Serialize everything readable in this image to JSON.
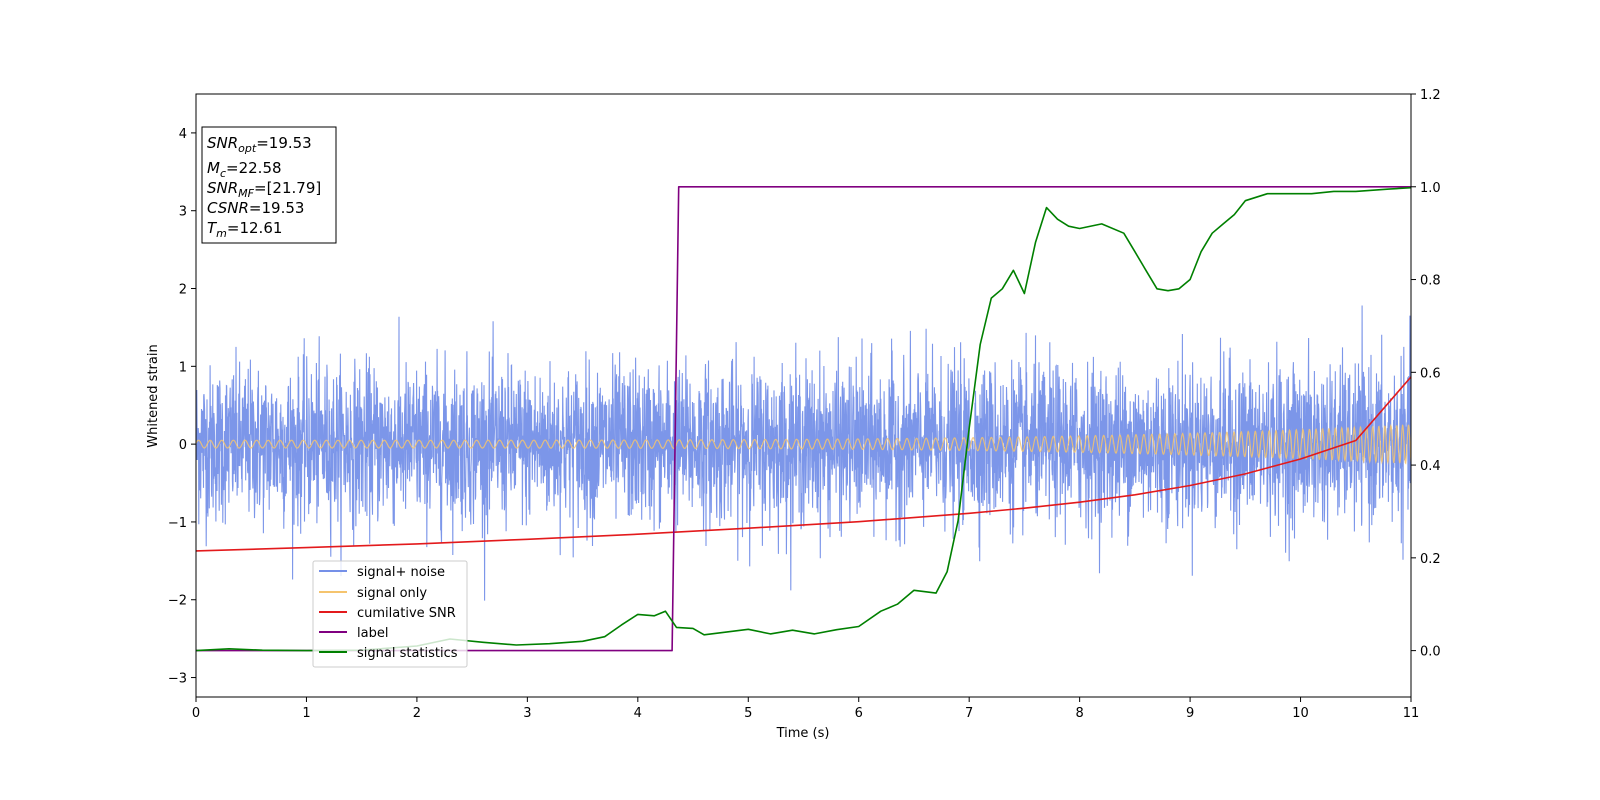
{
  "chart_data": {
    "type": "line",
    "xlabel": "Time (s)",
    "ylabel": "Whitened strain",
    "xlim": [
      0,
      11
    ],
    "ylim": [
      -3.25,
      4.5
    ],
    "y2lim": [
      -0.1,
      1.2
    ],
    "x_ticks": [
      "0",
      "1",
      "2",
      "3",
      "4",
      "5",
      "6",
      "7",
      "8",
      "9",
      "10",
      "11"
    ],
    "y_ticks": [
      "−3",
      "−2",
      "−1",
      "0",
      "1",
      "2",
      "3",
      "4"
    ],
    "y2_ticks": [
      "0.0",
      "0.2",
      "0.4",
      "0.6",
      "0.8",
      "1.0",
      "1.2"
    ],
    "grid": false,
    "legend_placement": "lower-left",
    "colors": {
      "signal_noise": "#7590e8",
      "signal_only": "#f5c46e",
      "cumulative_snr": "#e31a1c",
      "label": "#800080",
      "signal_statistics": "#008000"
    },
    "info_box": {
      "snr_opt": {
        "main": "SNR",
        "sub": "opt",
        "value": "=19.53"
      },
      "mc": {
        "main": "M",
        "sub": "c",
        "value": "=22.58"
      },
      "snr_mf": {
        "main": "SNR",
        "sub": "MF",
        "value": "=[21.79]"
      },
      "csnr": {
        "main": "CSNR",
        "value": "=19.53"
      },
      "tm": {
        "main": "T",
        "sub": "m",
        "value": "=12.61"
      }
    },
    "series": [
      {
        "name": "signal+ noise",
        "axis": "left",
        "kind": "noise",
        "amplitude_std": 0.5,
        "x_range": [
          0,
          11
        ]
      },
      {
        "name": "signal only",
        "axis": "left",
        "kind": "chirp",
        "x_range": [
          0,
          11
        ],
        "amplitude_start": 0.05,
        "amplitude_end": 0.25,
        "cycles_per_s_start": 9.5,
        "cycles_per_s_end": 19
      },
      {
        "name": "cumilative SNR",
        "axis": "right",
        "x": [
          0,
          1,
          2,
          3,
          4,
          5,
          6,
          7,
          7.5,
          8,
          8.5,
          9,
          9.5,
          10,
          10.5,
          11
        ],
        "y": [
          0.215,
          0.222,
          0.23,
          0.24,
          0.251,
          0.264,
          0.278,
          0.296,
          0.307,
          0.32,
          0.336,
          0.356,
          0.381,
          0.413,
          0.453,
          0.59
        ]
      },
      {
        "name": "label",
        "axis": "right",
        "x": [
          0,
          4.31,
          4.37,
          11
        ],
        "y": [
          0.0,
          0.0,
          1.0,
          1.0
        ]
      },
      {
        "name": "signal statistics",
        "axis": "right",
        "x": [
          0,
          0.3,
          0.6,
          1.0,
          1.5,
          2.0,
          2.3,
          2.6,
          2.9,
          3.2,
          3.5,
          3.7,
          3.85,
          4.0,
          4.15,
          4.25,
          4.35,
          4.5,
          4.6,
          4.8,
          5.0,
          5.2,
          5.4,
          5.6,
          5.8,
          6.0,
          6.2,
          6.35,
          6.5,
          6.7,
          6.8,
          6.9,
          7.0,
          7.1,
          7.2,
          7.3,
          7.4,
          7.5,
          7.6,
          7.7,
          7.8,
          7.9,
          8.0,
          8.2,
          8.4,
          8.5,
          8.6,
          8.7,
          8.8,
          8.9,
          9.0,
          9.1,
          9.2,
          9.3,
          9.4,
          9.5,
          9.7,
          9.9,
          10.1,
          10.3,
          10.5,
          10.8,
          11.0
        ],
        "y": [
          0.0,
          0.004,
          0.001,
          0.0,
          0.001,
          0.01,
          0.025,
          0.018,
          0.012,
          0.015,
          0.02,
          0.03,
          0.055,
          0.078,
          0.075,
          0.085,
          0.05,
          0.048,
          0.034,
          0.04,
          0.046,
          0.036,
          0.044,
          0.036,
          0.045,
          0.052,
          0.085,
          0.1,
          0.13,
          0.124,
          0.17,
          0.28,
          0.48,
          0.66,
          0.76,
          0.78,
          0.82,
          0.77,
          0.88,
          0.955,
          0.93,
          0.915,
          0.91,
          0.92,
          0.9,
          0.86,
          0.82,
          0.78,
          0.776,
          0.78,
          0.8,
          0.86,
          0.9,
          0.92,
          0.94,
          0.97,
          0.985,
          0.985,
          0.985,
          0.99,
          0.99,
          0.995,
          0.998
        ]
      }
    ]
  }
}
